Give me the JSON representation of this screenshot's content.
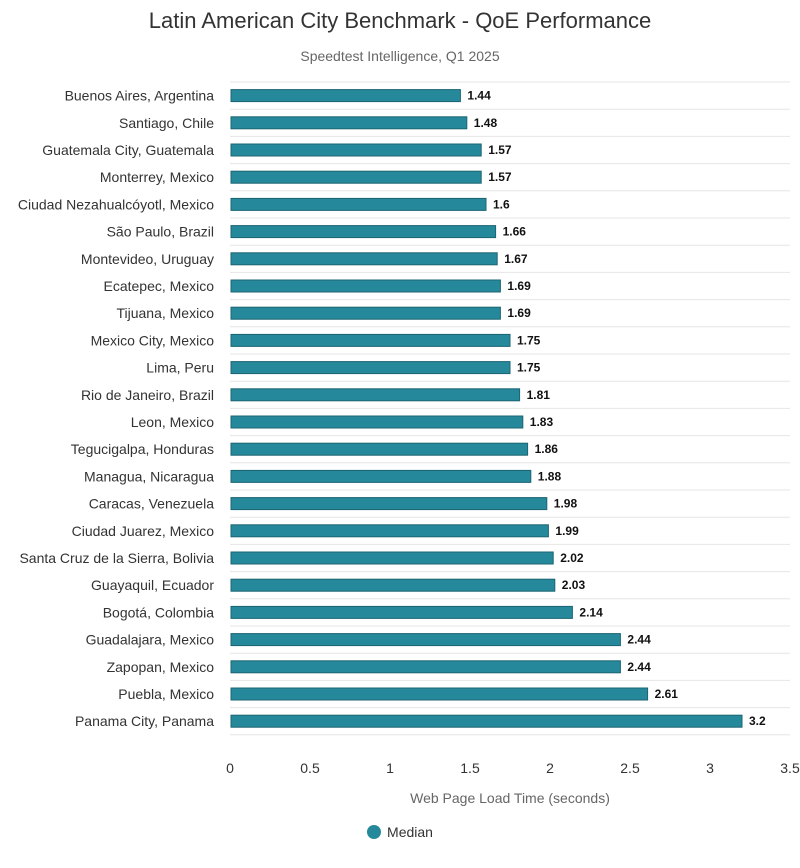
{
  "chart_data": {
    "type": "bar",
    "orientation": "horizontal",
    "title": "Latin American City Benchmark - QoE Performance",
    "subtitle": "Speedtest Intelligence, Q1 2025",
    "xlabel": "Web Page Load Time (seconds)",
    "ylabel": "",
    "xlim": [
      0,
      3.5
    ],
    "x_ticks": [
      "0",
      "0.5",
      "1",
      "1.5",
      "2",
      "2.5",
      "3",
      "3.5"
    ],
    "grid": true,
    "legend_position": "bottom-center",
    "series": [
      {
        "name": "Median",
        "color": "#25899b",
        "values": [
          1.44,
          1.48,
          1.57,
          1.57,
          1.6,
          1.66,
          1.67,
          1.69,
          1.69,
          1.75,
          1.75,
          1.81,
          1.83,
          1.86,
          1.88,
          1.98,
          1.99,
          2.02,
          2.03,
          2.14,
          2.44,
          2.44,
          2.61,
          3.2
        ]
      }
    ],
    "categories": [
      "Buenos Aires, Argentina",
      "Santiago, Chile",
      "Guatemala City, Guatemala",
      "Monterrey, Mexico",
      "Ciudad Nezahualcóyotl, Mexico",
      "São Paulo, Brazil",
      "Montevideo, Uruguay",
      "Ecatepec, Mexico",
      "Tijuana, Mexico",
      "Mexico City, Mexico",
      "Lima, Peru",
      "Rio de Janeiro, Brazil",
      "Leon, Mexico",
      "Tegucigalpa, Honduras",
      "Managua, Nicaragua",
      "Caracas, Venezuela",
      "Ciudad Juarez, Mexico",
      "Santa Cruz de la Sierra, Bolivia",
      "Guayaquil, Ecuador",
      "Bogotá, Colombia",
      "Guadalajara, Mexico",
      "Zapopan, Mexico",
      "Puebla, Mexico",
      "Panama City, Panama"
    ],
    "data_labels": [
      "1.44",
      "1.48",
      "1.57",
      "1.57",
      "1.6",
      "1.66",
      "1.67",
      "1.69",
      "1.69",
      "1.75",
      "1.75",
      "1.81",
      "1.83",
      "1.86",
      "1.88",
      "1.98",
      "1.99",
      "2.02",
      "2.03",
      "2.14",
      "2.44",
      "2.44",
      "2.61",
      "3.2"
    ]
  }
}
